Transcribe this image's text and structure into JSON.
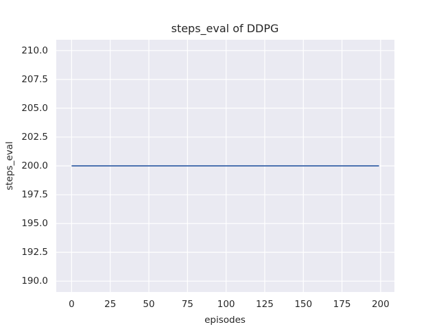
{
  "chart_data": {
    "type": "line",
    "title": "steps_eval of DDPG",
    "xlabel": "episodes",
    "ylabel": "steps_eval",
    "xlim": [
      -9.95,
      208.95
    ],
    "ylim": [
      189.06,
      210.94
    ],
    "grid": true,
    "legend": null,
    "xticks": {
      "values": [
        0,
        25,
        50,
        75,
        100,
        125,
        150,
        175,
        200
      ],
      "labels": [
        "0",
        "25",
        "50",
        "75",
        "100",
        "125",
        "150",
        "175",
        "200"
      ]
    },
    "yticks": {
      "values": [
        190.0,
        192.5,
        195.0,
        197.5,
        200.0,
        202.5,
        205.0,
        207.5,
        210.0
      ],
      "labels": [
        "190.0",
        "192.5",
        "195.0",
        "197.5",
        "200.0",
        "202.5",
        "205.0",
        "207.5",
        "210.0"
      ]
    },
    "styles": {
      "plot_background": "#eaeaf2",
      "grid_color": "#ffffff",
      "text_color": "#262626",
      "line_color": "#4c72b0",
      "line_width": 2
    },
    "series": [
      {
        "name": "steps_eval",
        "color": "#4c72b0",
        "x": [
          0,
          199
        ],
        "y": [
          200,
          200
        ]
      }
    ]
  }
}
